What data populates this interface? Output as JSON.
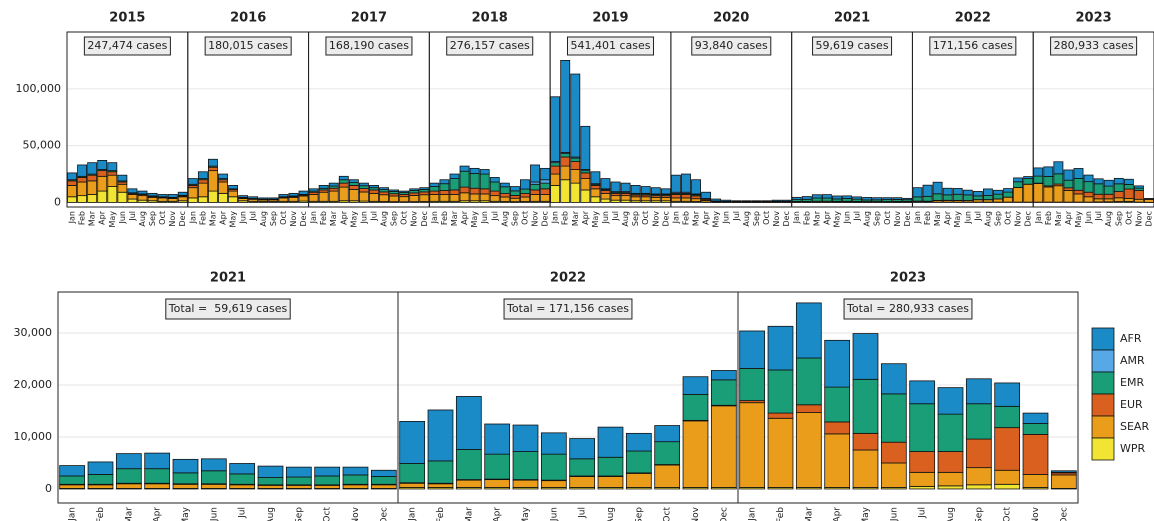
{
  "chart_data": {
    "type": "bar",
    "stacked": true,
    "categories": [
      "Jan",
      "Feb",
      "Mar",
      "Apr",
      "May",
      "Jun",
      "Jul",
      "Aug",
      "Sep",
      "Oct",
      "Nov",
      "Dec"
    ],
    "series": [
      {
        "name": "AFR",
        "color": "#1b8bc8"
      },
      {
        "name": "AMR",
        "color": "#56a8e6"
      },
      {
        "name": "EMR",
        "color": "#1a9e77"
      },
      {
        "name": "EUR",
        "color": "#d9601f"
      },
      {
        "name": "SEAR",
        "color": "#e99d1a"
      },
      {
        "name": "WPR",
        "color": "#f1e432"
      }
    ],
    "ylim": [
      -4000,
      150000
    ],
    "yticks": [
      0,
      {
        "value": 50000,
        "label": "50,000"
      },
      {
        "value": 100000,
        "label": "100,000"
      }
    ],
    "grid": true,
    "panels": [
      {
        "title": "2015",
        "annotation": "247,474 cases",
        "values": [
          [
            6000,
            10000,
            10000,
            8000,
            7000,
            5000,
            3500,
            2500,
            2200,
            2000,
            2500,
            2700
          ],
          [
            0,
            0,
            0,
            0,
            0,
            0,
            0,
            0,
            0,
            0,
            0,
            0
          ],
          [
            1000,
            1000,
            1000,
            1000,
            1000,
            1000,
            500,
            500,
            500,
            400,
            400,
            500
          ],
          [
            4000,
            4000,
            5000,
            5000,
            3000,
            2000,
            1000,
            1000,
            800,
            600,
            600,
            800
          ],
          [
            10000,
            12000,
            12000,
            13000,
            10000,
            7000,
            4000,
            4000,
            3000,
            3000,
            2500,
            3500
          ],
          [
            5000,
            6000,
            7000,
            10000,
            14000,
            9000,
            3000,
            2000,
            1500,
            1000,
            1000,
            1500
          ]
        ]
      },
      {
        "title": "2016",
        "annotation": "180,015 cases",
        "values": [
          [
            5000,
            6000,
            6000,
            4000,
            3000,
            1500,
            1500,
            1100,
            1100,
            2000,
            2300,
            2900
          ],
          [
            0,
            0,
            0,
            0,
            0,
            0,
            0,
            0,
            0,
            0,
            0,
            0
          ],
          [
            1000,
            1000,
            1000,
            1000,
            500,
            500,
            300,
            300,
            300,
            500,
            500,
            600
          ],
          [
            2000,
            3000,
            3000,
            2000,
            1500,
            500,
            400,
            300,
            300,
            500,
            700,
            800
          ],
          [
            9000,
            12000,
            18000,
            10000,
            5000,
            2000,
            1800,
            1500,
            1500,
            3000,
            3500,
            4500
          ],
          [
            4000,
            5000,
            10000,
            8000,
            5000,
            1500,
            1000,
            800,
            800,
            1000,
            1000,
            1200
          ]
        ]
      },
      {
        "title": "2017",
        "annotation": "168,190 cases",
        "values": [
          [
            2000,
            2500,
            2500,
            3000,
            2500,
            2300,
            2000,
            1700,
            1300,
            1100,
            1400,
            1500
          ],
          [
            0,
            0,
            0,
            0,
            0,
            0,
            0,
            0,
            0,
            0,
            0,
            0
          ],
          [
            1000,
            1500,
            2000,
            3000,
            2500,
            2500,
            2000,
            2000,
            2000,
            1800,
            2200,
            2200
          ],
          [
            2000,
            2000,
            2500,
            3500,
            3500,
            3000,
            3000,
            2500,
            2000,
            2000,
            2200,
            2500
          ],
          [
            6000,
            8000,
            9000,
            12000,
            10000,
            8000,
            7000,
            6000,
            5000,
            4500,
            5500,
            6000
          ],
          [
            1000,
            1000,
            1000,
            1500,
            1500,
            1200,
            1000,
            800,
            700,
            600,
            700,
            800
          ]
        ]
      },
      {
        "title": "2018",
        "annotation": "276,157 cases",
        "values": [
          [
            3000,
            3500,
            4000,
            4500,
            4500,
            4000,
            4000,
            3200,
            3800,
            8200,
            15000,
            10000
          ],
          [
            0,
            0,
            0,
            0,
            0,
            0,
            0,
            0,
            0,
            0,
            2000,
            3000
          ],
          [
            4000,
            6000,
            10000,
            14000,
            13000,
            13000,
            8000,
            6000,
            4000,
            4000,
            5000,
            5000
          ],
          [
            3000,
            3500,
            4000,
            5000,
            5000,
            4500,
            4000,
            3000,
            2500,
            3000,
            4000,
            5000
          ],
          [
            6000,
            6000,
            6000,
            7000,
            6000,
            6000,
            5000,
            4000,
            3000,
            4000,
            6000,
            6000
          ],
          [
            1000,
            1000,
            1000,
            1500,
            1500,
            1500,
            1000,
            800,
            700,
            800,
            1000,
            1000
          ]
        ]
      },
      {
        "title": "2019",
        "annotation": "541,401 cases",
        "values": [
          [
            57000,
            81000,
            73000,
            38000,
            10500,
            9000,
            8500,
            7500,
            7000,
            6000,
            5500,
            4500
          ],
          [
            1000,
            1000,
            1000,
            1000,
            500,
            500,
            500,
            500,
            500,
            500,
            500,
            500
          ],
          [
            3000,
            3000,
            3000,
            2000,
            1000,
            1000,
            1000,
            1000,
            1000,
            1000,
            1000,
            1000
          ],
          [
            7000,
            8000,
            7000,
            5000,
            3000,
            2500,
            2000,
            2000,
            1500,
            1500,
            1500,
            1500
          ],
          [
            10000,
            12000,
            12000,
            10000,
            7000,
            5000,
            4000,
            4000,
            3500,
            3500,
            3000,
            3000
          ],
          [
            15000,
            20000,
            17000,
            11000,
            5000,
            3000,
            2000,
            2000,
            1500,
            1500,
            1500,
            1500
          ]
        ]
      },
      {
        "title": "2020",
        "annotation": "93,840 cases",
        "values": [
          [
            15000,
            16000,
            12500,
            5500,
            1700,
            1100,
            700,
            700,
            700,
            700,
            1000,
            1000
          ],
          [
            1000,
            1000,
            700,
            200,
            100,
            0,
            0,
            0,
            0,
            0,
            0,
            0
          ],
          [
            1000,
            1000,
            1000,
            500,
            300,
            300,
            300,
            300,
            300,
            300,
            400,
            400
          ],
          [
            3000,
            3000,
            2500,
            1000,
            300,
            200,
            100,
            100,
            100,
            100,
            100,
            100
          ],
          [
            3000,
            3000,
            2500,
            1500,
            500,
            300,
            300,
            300,
            300,
            300,
            400,
            400
          ],
          [
            1000,
            1000,
            800,
            300,
            100,
            100,
            100,
            100,
            100,
            100,
            100,
            100
          ]
        ]
      },
      {
        "title": "2021",
        "annotation": "59,619 cases",
        "values": [
          [
            2000,
            2400,
            2900,
            3000,
            2600,
            2300,
            2000,
            2200,
            1900,
            1700,
            1500,
            1200
          ],
          [
            0,
            0,
            0,
            0,
            0,
            0,
            0,
            0,
            0,
            0,
            0,
            0
          ],
          [
            1600,
            1900,
            2800,
            2800,
            2100,
            2500,
            2000,
            1400,
            1500,
            1700,
            1800,
            1500
          ],
          [
            100,
            100,
            100,
            100,
            100,
            100,
            100,
            100,
            100,
            100,
            100,
            100
          ],
          [
            700,
            700,
            900,
            900,
            800,
            800,
            700,
            600,
            600,
            600,
            700,
            700
          ],
          [
            100,
            100,
            100,
            100,
            100,
            100,
            100,
            100,
            100,
            100,
            100,
            100
          ]
        ]
      },
      {
        "title": "2022",
        "annotation": "171,156 cases",
        "values": [
          [
            8100,
            9800,
            10200,
            5800,
            5100,
            4100,
            3900,
            5800,
            3400,
            3100,
            3400,
            1800
          ],
          [
            0,
            0,
            0,
            0,
            0,
            0,
            0,
            0,
            0,
            0,
            0,
            0
          ],
          [
            3700,
            4300,
            5800,
            4800,
            5400,
            5000,
            3300,
            3600,
            4200,
            4400,
            5000,
            4900
          ],
          [
            100,
            100,
            100,
            100,
            100,
            100,
            100,
            100,
            100,
            100,
            100,
            100
          ],
          [
            800,
            700,
            1400,
            1500,
            1400,
            1300,
            2100,
            2100,
            2700,
            4300,
            12800,
            15700
          ],
          [
            300,
            300,
            300,
            300,
            300,
            300,
            300,
            300,
            300,
            300,
            300,
            300
          ]
        ]
      },
      {
        "title": "2023",
        "annotation": "280,933 cases",
        "values": [
          [
            7200,
            8400,
            10600,
            9000,
            8800,
            5800,
            4400,
            5100,
            4800,
            4500,
            2000,
            300
          ],
          [
            0,
            0,
            0,
            0,
            0,
            0,
            0,
            0,
            0,
            0,
            0,
            0
          ],
          [
            6200,
            8300,
            9000,
            6700,
            10400,
            9300,
            9200,
            7200,
            6800,
            4100,
            2100,
            100
          ],
          [
            400,
            1000,
            1500,
            2300,
            3200,
            4000,
            4000,
            4000,
            5500,
            8200,
            7700,
            400
          ],
          [
            16300,
            13300,
            14400,
            10300,
            7200,
            4700,
            2700,
            2600,
            3300,
            2700,
            2500,
            2600
          ],
          [
            300,
            300,
            300,
            300,
            300,
            300,
            500,
            600,
            800,
            900,
            300,
            100
          ]
        ]
      }
    ],
    "detail": {
      "ylim": [
        -2700,
        37900
      ],
      "yticks": [
        0,
        {
          "value": 10000,
          "label": "10,000"
        },
        {
          "value": 20000,
          "label": "20,000"
        },
        {
          "value": 30000,
          "label": "30,000"
        }
      ],
      "panels": [
        {
          "title": "2021",
          "annotation": "Total =  59,619 cases"
        },
        {
          "title": "2022",
          "annotation": "Total = 171,156 cases"
        },
        {
          "title": "2023",
          "annotation": "Total = 280,933 cases"
        }
      ]
    }
  }
}
